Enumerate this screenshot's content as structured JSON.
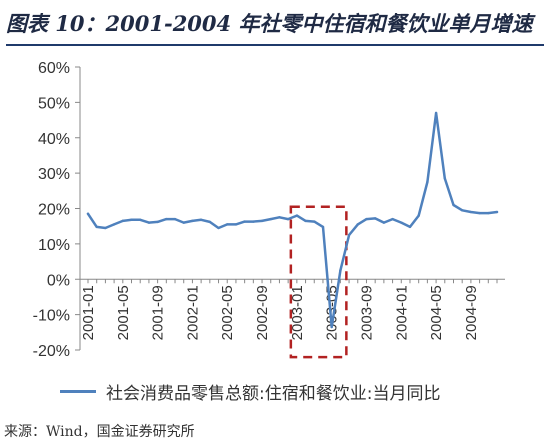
{
  "title": "图表 10：2001-2004 年社零中住宿和餐饮业单月增速",
  "source": "来源：Wind，国金证券研究所",
  "colors": {
    "series": "#4f81bd",
    "highlight": "#b22222",
    "axis": "#888888"
  },
  "chart_data": {
    "type": "line",
    "title": "图表 10：2001-2004 年社零中住宿和餐饮业单月增速",
    "ylim": [
      -20,
      60
    ],
    "y_ticks": [
      "-20%",
      "-10%",
      "0%",
      "10%",
      "20%",
      "30%",
      "40%",
      "50%",
      "60%"
    ],
    "y_tick_values": [
      -20,
      -10,
      0,
      10,
      20,
      30,
      40,
      50,
      60
    ],
    "x_tick_labels": [
      "2001-01",
      "2001-05",
      "2001-09",
      "2002-01",
      "2002-05",
      "2002-09",
      "2003-01",
      "2003-05",
      "2003-09",
      "2004-01",
      "2004-05",
      "2004-09"
    ],
    "grid": false,
    "legend_position": "bottom",
    "highlight_range": [
      "2003-01",
      "2003-06"
    ],
    "series": [
      {
        "name": "社会消费品零售总额:住宿和餐饮业:当月同比",
        "x": [
          "2001-01",
          "2001-02",
          "2001-03",
          "2001-04",
          "2001-05",
          "2001-06",
          "2001-07",
          "2001-08",
          "2001-09",
          "2001-10",
          "2001-11",
          "2001-12",
          "2002-01",
          "2002-02",
          "2002-03",
          "2002-04",
          "2002-05",
          "2002-06",
          "2002-07",
          "2002-08",
          "2002-09",
          "2002-10",
          "2002-11",
          "2002-12",
          "2003-01",
          "2003-02",
          "2003-03",
          "2003-04",
          "2003-05",
          "2003-06",
          "2003-07",
          "2003-08",
          "2003-09",
          "2003-10",
          "2003-11",
          "2003-12",
          "2004-01",
          "2004-02",
          "2004-03",
          "2004-04",
          "2004-05",
          "2004-06",
          "2004-07",
          "2004-08",
          "2004-09",
          "2004-10",
          "2004-11",
          "2004-12"
        ],
        "values": [
          18.5,
          14.8,
          14.5,
          15.5,
          16.5,
          16.8,
          16.8,
          16.0,
          16.2,
          17.0,
          17.0,
          16.0,
          16.5,
          16.8,
          16.2,
          14.5,
          15.5,
          15.5,
          16.3,
          16.3,
          16.5,
          17.0,
          17.5,
          17.0,
          18.0,
          16.5,
          16.3,
          14.8,
          -13.5,
          2.5,
          12.5,
          15.5,
          17.0,
          17.2,
          16.0,
          17.0,
          16.0,
          14.8,
          18.0,
          27.5,
          47.0,
          28.5,
          21.0,
          19.5,
          19.0,
          18.7,
          18.7,
          19.0
        ]
      }
    ]
  }
}
